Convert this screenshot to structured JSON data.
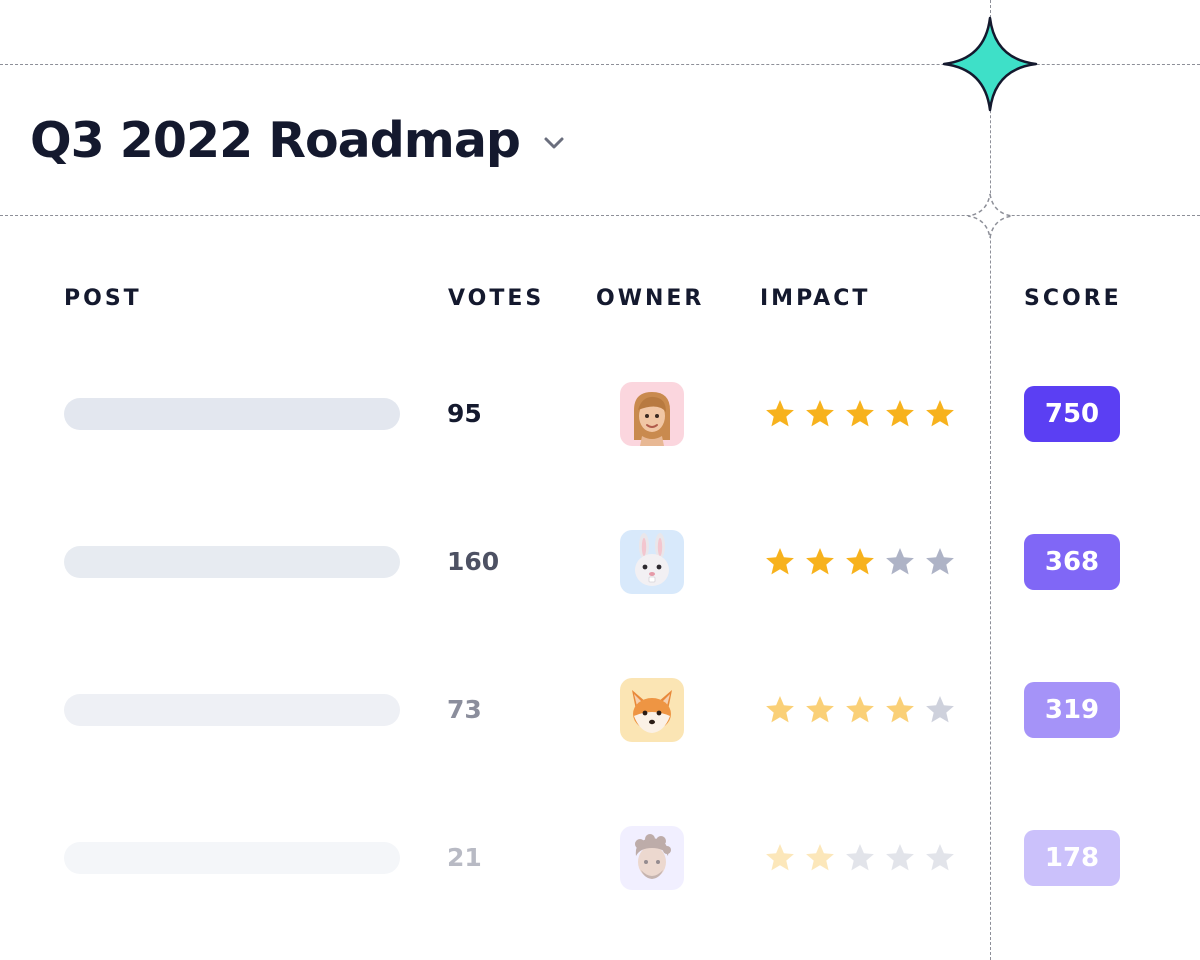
{
  "title": "Q3 2022 Roadmap",
  "columns": {
    "post": "POST",
    "votes": "VOTES",
    "owner": "OWNER",
    "impact": "IMPACT",
    "score": "SCORE"
  },
  "rows": [
    {
      "votes": "95",
      "owner": "woman-memoji-avatar",
      "impact": 5,
      "score": "750"
    },
    {
      "votes": "160",
      "owner": "bunny-memoji-avatar",
      "impact": 3,
      "score": "368"
    },
    {
      "votes": "73",
      "owner": "fox-memoji-avatar",
      "impact": 4,
      "score": "319"
    },
    {
      "votes": "21",
      "owner": "man-memoji-avatar",
      "impact": 2,
      "score": "178"
    }
  ],
  "colors": {
    "title": "#14192e",
    "sparkle": "#3ee0c8",
    "star_filled": "#f7b21d",
    "star_empty": "#aeb3c6",
    "score_primary": "#5b3ff3"
  },
  "impact_max": 5
}
